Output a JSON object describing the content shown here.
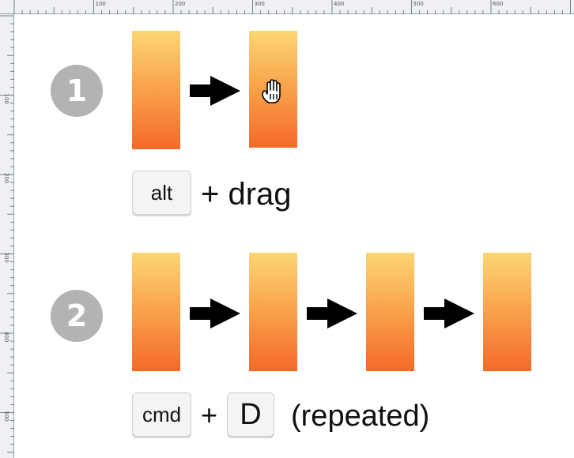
{
  "ruler": {
    "top_labels": [
      "100",
      "200",
      "300",
      "400",
      "500",
      "600"
    ],
    "left_labels": [
      "100",
      "200",
      "300",
      "400",
      "500"
    ]
  },
  "step1": {
    "number": "1",
    "modifier_key": "alt",
    "action_text": "+ drag",
    "cursor_icon": "grab-hand-icon"
  },
  "step2": {
    "number": "2",
    "modifier_key": "cmd",
    "plus": "+",
    "letter_key": "D",
    "note": "(repeated)"
  },
  "colors": {
    "gradient_top": "#fdd673",
    "gradient_bottom": "#f56a28",
    "badge": "#b3b3b3"
  }
}
